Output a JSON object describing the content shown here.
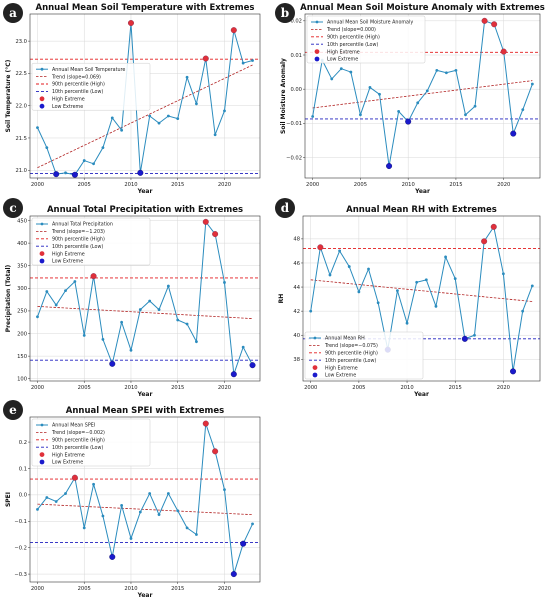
{
  "colors": {
    "series": "#2b8cbe",
    "trend": "#b22222",
    "high_line": "#e31a1c",
    "low_line": "#1f1fbf",
    "high_marker": "#e0303a",
    "low_marker": "#1a1acc",
    "grid": "#d8d8d8",
    "badge": "#222222"
  },
  "chart_data": [
    {
      "type": "line",
      "badge": "a",
      "title": "Annual Mean Soil Temperature with Extremes",
      "xlabel": "Year",
      "ylabel": "Soil Temperature (°C)",
      "xlim": [
        1999.2,
        2023.8
      ],
      "ylim": [
        20.88,
        23.42
      ],
      "xticks": [
        2000,
        2005,
        2010,
        2015,
        2020
      ],
      "yticks": [
        21.0,
        21.5,
        22.0,
        22.5,
        23.0
      ],
      "ytick_labels": [
        "21.0",
        "21.5",
        "22.0",
        "22.5",
        "23.0"
      ],
      "x": [
        2000,
        2001,
        2002,
        2003,
        2004,
        2005,
        2006,
        2007,
        2008,
        2009,
        2010,
        2011,
        2012,
        2013,
        2014,
        2015,
        2016,
        2017,
        2018,
        2019,
        2020,
        2021,
        2022,
        2023
      ],
      "values": [
        21.66,
        21.35,
        20.94,
        20.96,
        20.93,
        21.15,
        21.1,
        21.35,
        21.81,
        21.62,
        23.28,
        20.96,
        21.84,
        21.73,
        21.84,
        21.8,
        22.44,
        22.03,
        22.73,
        21.55,
        21.92,
        23.17,
        22.66,
        22.7
      ],
      "trend": [
        21.04,
        22.63
      ],
      "high_threshold": 22.72,
      "low_threshold": 20.95,
      "high_idx": [
        10,
        18,
        21
      ],
      "low_idx": [
        2,
        4,
        11
      ],
      "legend_position": "center-left",
      "legend": [
        "Annual Mean Soil Temperature",
        "Trend (slope=0.069)",
        "90th percentile (High)",
        "10th percentile (Low)",
        "High Extreme",
        "Low Extreme"
      ]
    },
    {
      "type": "line",
      "badge": "b",
      "title": "Annual Mean Soil Moisture Anomaly with Extremes",
      "xlabel": "Year",
      "ylabel": "Soil Moisture Anomaly",
      "xlim": [
        1999.2,
        2023.8
      ],
      "ylim": [
        -0.026,
        0.022
      ],
      "xticks": [
        2000,
        2005,
        2010,
        2015,
        2020
      ],
      "yticks": [
        -0.02,
        -0.01,
        0.0,
        0.01,
        0.02
      ],
      "ytick_labels": [
        "−0.02",
        "−0.01",
        "0.00",
        "0.01",
        "0.02"
      ],
      "x": [
        2000,
        2001,
        2002,
        2003,
        2004,
        2005,
        2006,
        2007,
        2008,
        2009,
        2010,
        2011,
        2012,
        2013,
        2014,
        2015,
        2016,
        2017,
        2018,
        2019,
        2020,
        2021,
        2022,
        2023
      ],
      "values": [
        -0.008,
        0.0085,
        0.003,
        0.006,
        0.005,
        -0.0075,
        0.0005,
        -0.0015,
        -0.0225,
        -0.0065,
        -0.0095,
        -0.004,
        -0.0005,
        0.0055,
        0.0048,
        0.0055,
        -0.0075,
        -0.005,
        0.02,
        0.019,
        0.011,
        -0.013,
        -0.006,
        0.0015
      ],
      "trend": [
        -0.0055,
        0.0025
      ],
      "high_threshold": 0.0108,
      "low_threshold": -0.0087,
      "high_idx": [
        18,
        19,
        20
      ],
      "low_idx": [
        8,
        10,
        21
      ],
      "legend_position": "top-left",
      "legend": [
        "Annual Mean Soil Moisture Anomaly",
        "Trend (slope=0.000)",
        "90th percentile (High)",
        "10th percentile (Low)",
        "High Extreme",
        "Low Extreme"
      ]
    },
    {
      "type": "line",
      "badge": "c",
      "title": "Annual Total Precipitation with Extremes",
      "xlabel": "Year",
      "ylabel": "Precipitation (Total)",
      "xlim": [
        1999.2,
        2023.8
      ],
      "ylim": [
        95,
        460
      ],
      "xticks": [
        2000,
        2005,
        2010,
        2015,
        2020
      ],
      "yticks": [
        100,
        150,
        200,
        250,
        300,
        350,
        400,
        450
      ],
      "ytick_labels": [
        "100",
        "150",
        "200",
        "250",
        "300",
        "350",
        "400",
        "450"
      ],
      "x": [
        2000,
        2001,
        2002,
        2003,
        2004,
        2005,
        2006,
        2007,
        2008,
        2009,
        2010,
        2011,
        2012,
        2013,
        2014,
        2015,
        2016,
        2017,
        2018,
        2019,
        2020,
        2021,
        2022,
        2023
      ],
      "values": [
        237,
        293,
        263,
        295,
        315,
        196,
        327,
        187,
        133,
        225,
        163,
        253,
        272,
        253,
        305,
        230,
        221,
        182,
        447,
        420,
        313,
        110,
        170,
        130
      ],
      "trend": [
        260,
        233
      ],
      "high_threshold": 323,
      "low_threshold": 141,
      "high_idx": [
        6,
        18,
        19
      ],
      "low_idx": [
        8,
        21,
        23
      ],
      "legend_position": "top-left",
      "legend": [
        "Annual Total Precipitation",
        "Trend (slope=−1.203)",
        "90th percentile (High)",
        "10th percentile (Low)",
        "High Extreme",
        "Low Extreme"
      ]
    },
    {
      "type": "line",
      "badge": "d",
      "title": "Annual Mean RH with Extremes",
      "xlabel": "Year",
      "ylabel": "RH",
      "xlim": [
        1999.2,
        2023.8
      ],
      "ylim": [
        36.2,
        49.9
      ],
      "xticks": [
        2000,
        2005,
        2010,
        2015,
        2020
      ],
      "yticks": [
        38,
        40,
        42,
        44,
        46,
        48
      ],
      "ytick_labels": [
        "38",
        "40",
        "42",
        "44",
        "46",
        "48"
      ],
      "x": [
        2000,
        2001,
        2002,
        2003,
        2004,
        2005,
        2006,
        2007,
        2008,
        2009,
        2010,
        2011,
        2012,
        2013,
        2014,
        2015,
        2016,
        2017,
        2018,
        2019,
        2020,
        2021,
        2022,
        2023
      ],
      "values": [
        42.0,
        47.3,
        45.0,
        47.0,
        45.7,
        43.6,
        45.5,
        42.7,
        38.8,
        43.7,
        41.0,
        44.4,
        44.6,
        42.4,
        46.5,
        44.7,
        39.7,
        40.0,
        47.8,
        49.0,
        45.1,
        37.0,
        42.0,
        44.1
      ],
      "trend": [
        44.6,
        42.8
      ],
      "high_threshold": 47.2,
      "low_threshold": 39.7,
      "high_idx": [
        1,
        18,
        19
      ],
      "low_idx": [
        8,
        16,
        21
      ],
      "legend_position": "bottom-left",
      "legend": [
        "Annual Mean RH",
        "Trend (slope=−0.075)",
        "90th percentile (High)",
        "10th percentile (Low)",
        "High Extreme",
        "Low Extreme"
      ]
    },
    {
      "type": "line",
      "badge": "e",
      "title": "Annual Mean SPEI with Extremes",
      "xlabel": "Year",
      "ylabel": "SPEI",
      "xlim": [
        1999.2,
        2023.8
      ],
      "ylim": [
        -0.33,
        0.295
      ],
      "xticks": [
        2000,
        2005,
        2010,
        2015,
        2020
      ],
      "yticks": [
        -0.3,
        -0.2,
        -0.1,
        0.0,
        0.1,
        0.2
      ],
      "ytick_labels": [
        "−0.3",
        "−0.2",
        "−0.1",
        "0.0",
        "0.1",
        "0.2"
      ],
      "x": [
        2000,
        2001,
        2002,
        2003,
        2004,
        2005,
        2006,
        2007,
        2008,
        2009,
        2010,
        2011,
        2012,
        2013,
        2014,
        2015,
        2016,
        2017,
        2018,
        2019,
        2020,
        2021,
        2022,
        2023
      ],
      "values": [
        -0.055,
        -0.01,
        -0.025,
        0.005,
        0.065,
        -0.125,
        0.04,
        -0.08,
        -0.235,
        -0.04,
        -0.165,
        -0.065,
        0.005,
        -0.075,
        0.005,
        -0.06,
        -0.125,
        -0.15,
        0.27,
        0.165,
        0.02,
        -0.3,
        -0.185,
        -0.11
      ],
      "trend": [
        -0.035,
        -0.075
      ],
      "high_threshold": 0.06,
      "low_threshold": -0.18,
      "high_idx": [
        4,
        18,
        19
      ],
      "low_idx": [
        8,
        21,
        22
      ],
      "legend_position": "top-left",
      "legend": [
        "Annual Mean SPEI",
        "Trend (slope=−0.002)",
        "90th percentile (High)",
        "10th percentile (Low)",
        "High Extreme",
        "Low Extreme"
      ]
    }
  ]
}
